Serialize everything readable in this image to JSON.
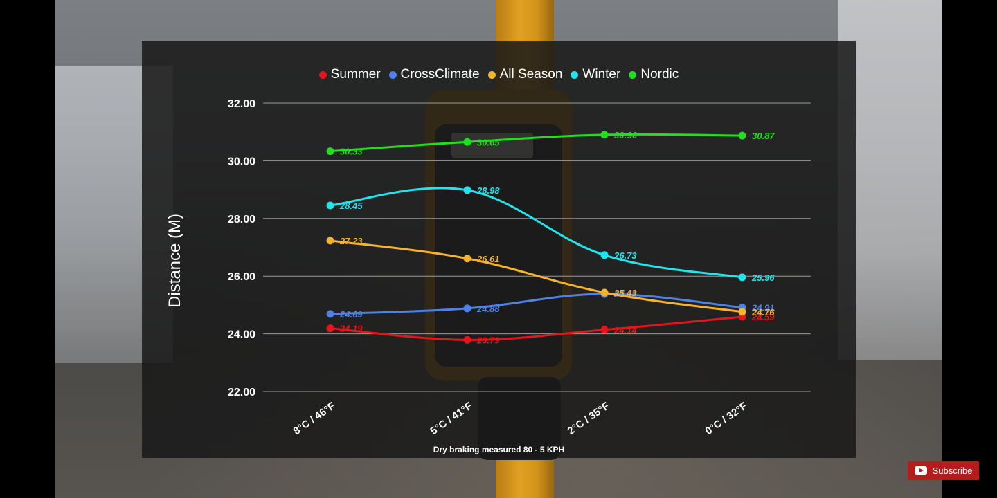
{
  "colors": {
    "Summer": "#e8141b",
    "CrossClimate": "#4e82e6",
    "All Season": "#f7b32b",
    "Winter": "#22e4ec",
    "Nordic": "#1fe01a"
  },
  "chart_data": {
    "type": "line",
    "title": "",
    "xlabel": "",
    "ylabel": "Distance (M)",
    "categories": [
      "8°C / 46°F",
      "5°C / 41°F",
      "2°C / 35°F",
      "0°C / 32°F"
    ],
    "ylim": [
      22,
      32
    ],
    "yticks": [
      "22.00",
      "24.00",
      "26.00",
      "28.00",
      "30.00",
      "32.00"
    ],
    "grid": true,
    "legend_position": "top",
    "series": [
      {
        "name": "Summer",
        "values": [
          24.19,
          23.79,
          24.14,
          24.59
        ],
        "labels": [
          "24.19",
          "23.79",
          "24.14",
          "24.59"
        ]
      },
      {
        "name": "CrossClimate",
        "values": [
          24.69,
          24.88,
          25.38,
          24.91
        ],
        "labels": [
          "24.69",
          "24.88",
          "25.38",
          "24.91"
        ]
      },
      {
        "name": "All Season",
        "values": [
          27.23,
          26.61,
          25.43,
          24.76
        ],
        "labels": [
          "27.23",
          "26.61",
          "25.43",
          "24.76"
        ]
      },
      {
        "name": "Winter",
        "values": [
          28.45,
          28.98,
          26.73,
          25.96
        ],
        "labels": [
          "28.45",
          "28.98",
          "26.73",
          "25.96"
        ]
      },
      {
        "name": "Nordic",
        "values": [
          30.33,
          30.65,
          30.9,
          30.87
        ],
        "labels": [
          "30.33",
          "30.65",
          "30:90",
          "30.87"
        ]
      }
    ],
    "footnote": "Dry braking measured 80 - 5 KPH"
  },
  "subscribe": {
    "label": "Subscribe",
    "icon": "youtube-play-icon"
  }
}
